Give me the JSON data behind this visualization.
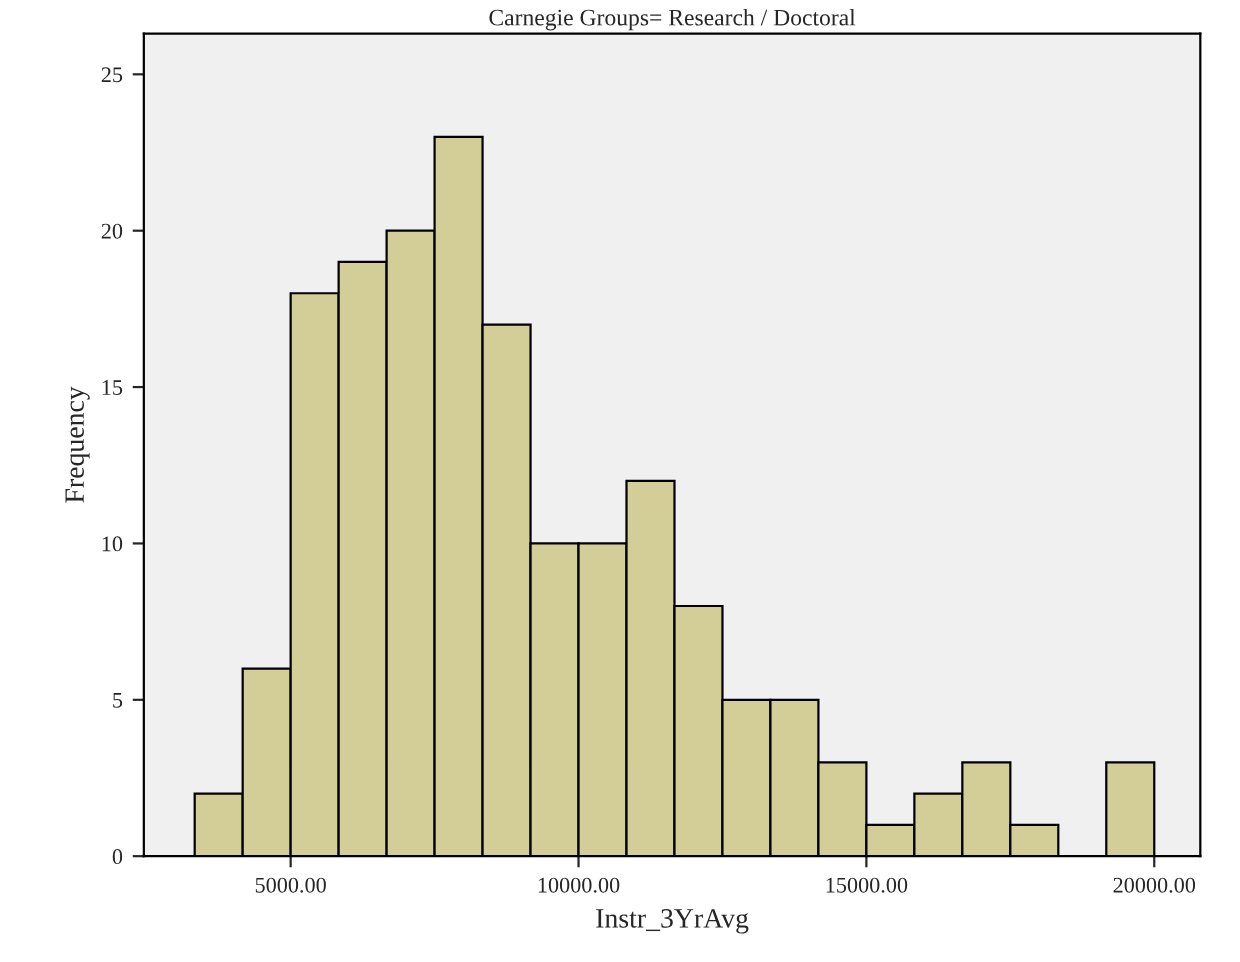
{
  "chart_data": {
    "type": "histogram",
    "title": "Carnegie Groups= Research / Doctoral",
    "xlabel": "Instr_3YrAvg",
    "ylabel": "Frequency",
    "bins": [
      3333.33,
      4166.67,
      5000,
      5833.33,
      6666.67,
      7500,
      8333.33,
      9166.67,
      10000,
      10833.33,
      11666.67,
      12500,
      13333.33,
      14166.67,
      15000,
      15833.33,
      16666.67,
      17500,
      18333.33,
      19166.67,
      20000
    ],
    "values": [
      2,
      6,
      18,
      19,
      20,
      23,
      17,
      10,
      10,
      12,
      8,
      5,
      5,
      3,
      1,
      2,
      3,
      1,
      0,
      3
    ],
    "color": "#d3ce97",
    "xlim": [
      2450,
      20800
    ],
    "ylim": [
      0,
      26.3
    ],
    "xticks": [
      {
        "value": 5000,
        "label": "5000.00"
      },
      {
        "value": 10000,
        "label": "10000.00"
      },
      {
        "value": 15000,
        "label": "15000.00"
      },
      {
        "value": 20000,
        "label": "20000.00"
      }
    ],
    "yticks": [
      0,
      5,
      10,
      15,
      20,
      25
    ],
    "grid": false,
    "legend": false
  }
}
